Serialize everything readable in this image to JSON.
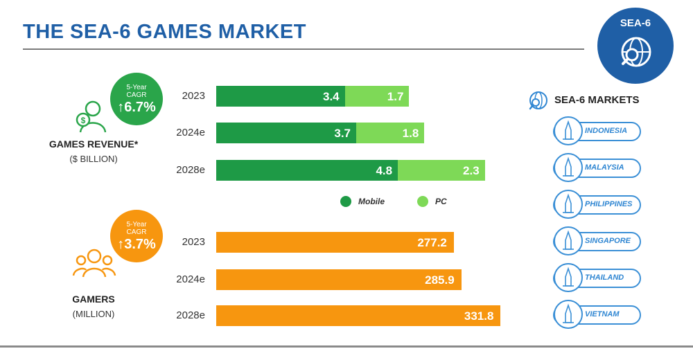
{
  "title": "THE SEA-6 GAMES MARKET",
  "badge": {
    "text": "SEA-6"
  },
  "revenue": {
    "label": "GAMES REVENUE*",
    "unit": "($ BILLION)",
    "cagr_label_1": "5-Year",
    "cagr_label_2": "CAGR",
    "cagr_value": "↑6.7%"
  },
  "gamers": {
    "label": "GAMERS",
    "unit": "(MILLION)",
    "cagr_label_1": "5-Year",
    "cagr_label_2": "CAGR",
    "cagr_value": "↑3.7%"
  },
  "legend": {
    "mobile": "Mobile",
    "pc": "PC"
  },
  "markets": {
    "title": "SEA-6 MARKETS",
    "items": [
      "INDONESIA",
      "MALAYSIA",
      "PHILIPPINES",
      "SINGAPORE",
      "THAILAND",
      "VIETNAM"
    ]
  },
  "colors": {
    "title": "#1f5fa6",
    "mobile": "#1e9a46",
    "pc": "#7ed957",
    "gamers": "#f7960f",
    "cagr_revenue": "#2aa54a",
    "cagr_gamers": "#f7960f",
    "market": "#2f86d2"
  },
  "chart_data": [
    {
      "type": "bar",
      "stacked": true,
      "orientation": "horizontal",
      "categories": [
        "2023",
        "2024e",
        "2028e"
      ],
      "series": [
        {
          "name": "Mobile",
          "values": [
            3.4,
            3.7,
            4.8
          ]
        },
        {
          "name": "PC",
          "values": [
            1.7,
            1.8,
            2.3
          ]
        }
      ],
      "labels": [
        [
          "3.4",
          "1.7"
        ],
        [
          "3.7",
          "1.8"
        ],
        [
          "4.8",
          "2.3"
        ]
      ]
    },
    {
      "type": "bar",
      "orientation": "horizontal",
      "categories": [
        "2023",
        "2024e",
        "2028e"
      ],
      "values": [
        277.2,
        285.9,
        331.8
      ],
      "labels": [
        "277.2",
        "285.9",
        "331.8"
      ]
    }
  ]
}
